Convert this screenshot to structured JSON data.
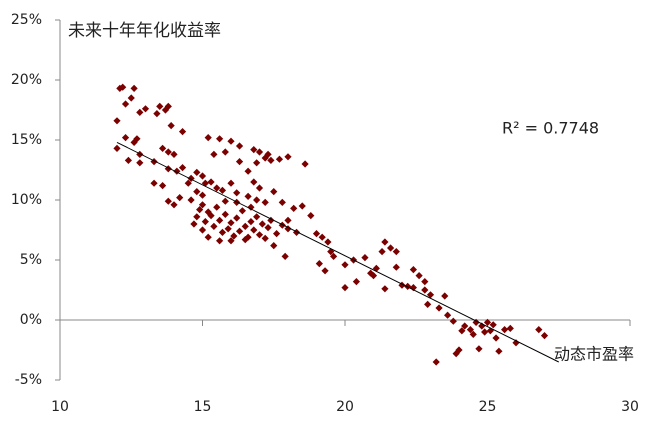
{
  "chart_data": {
    "type": "scatter",
    "y_label": "未来十年年化收益率",
    "x_label": "动态市盈率",
    "annotation": "R² = 0.7748",
    "color": "#7b0000",
    "xlim": [
      10,
      30
    ],
    "xticks": [
      10,
      15,
      20,
      25,
      30
    ],
    "ylim": [
      -5,
      25
    ],
    "yticks": [
      {
        "value": -5,
        "label": "-5%"
      },
      {
        "value": 0,
        "label": "0%"
      },
      {
        "value": 5,
        "label": "5%"
      },
      {
        "value": 10,
        "label": "10%"
      },
      {
        "value": 15,
        "label": "15%"
      },
      {
        "value": 20,
        "label": "20%"
      },
      {
        "value": 25,
        "label": "25%"
      }
    ],
    "x": [
      12.1,
      12.2,
      12.6,
      12.3,
      12.5,
      12.8,
      13.0,
      12.0,
      13.5,
      13.7,
      13.8,
      13.4,
      12.3,
      12.6,
      12.7,
      13.9,
      14.3,
      12.0,
      12.8,
      12.8,
      12.4,
      13.3,
      13.6,
      13.8,
      14.0,
      13.8,
      14.1,
      14.3,
      14.6,
      14.5,
      14.8,
      13.3,
      13.6,
      13.8,
      14.0,
      14.2,
      14.6,
      14.8,
      15.0,
      15.1,
      15.0,
      15.3,
      15.5,
      15.7,
      15.2,
      15.6,
      15.4,
      16.0,
      16.3,
      15.8,
      16.3,
      16.6,
      16.8,
      17.0,
      17.2,
      17.4,
      17.7,
      18.0,
      18.6,
      16.9,
      17.3,
      16.8,
      17.0,
      16.6,
      16.9,
      16.2,
      16.0,
      17.2,
      17.8,
      18.2,
      18.5,
      18.8,
      17.5,
      14.8,
      14.9,
      15.1,
      15.2,
      15.0,
      15.3,
      15.4,
      15.5,
      15.6,
      15.7,
      15.8,
      15.9,
      16.0,
      16.1,
      16.2,
      16.3,
      16.4,
      16.5,
      16.6,
      16.7,
      16.8,
      16.9,
      17.0,
      17.1,
      17.2,
      17.3,
      17.4,
      17.6,
      17.8,
      18.0,
      15.2,
      15.6,
      16.0,
      16.5,
      17.5,
      14.7,
      15.0,
      16.2,
      17.9,
      18.3,
      18.0,
      15.8,
      16.7,
      19.0,
      19.2,
      19.4,
      19.5,
      19.6,
      19.1,
      19.3,
      20.0,
      20.3,
      20.7,
      20.4,
      20.0,
      21.0,
      20.9,
      21.1,
      21.3,
      21.6,
      21.4,
      21.8,
      21.8,
      21.4,
      22.0,
      22.2,
      22.4,
      22.6,
      22.8,
      22.4,
      22.8,
      22.9,
      23.0,
      23.3,
      23.6,
      23.5,
      23.2,
      23.9,
      24.0,
      24.2,
      24.4,
      24.5,
      24.6,
      24.8,
      24.7,
      25.0,
      25.1,
      25.3,
      25.4,
      25.6,
      25.8,
      26.0,
      25.2,
      26.8,
      27.0,
      24.9,
      24.1,
      23.8
    ],
    "y": [
      19.3,
      19.4,
      19.3,
      18,
      18.5,
      17.3,
      17.6,
      16.6,
      17.8,
      17.5,
      17.8,
      17.2,
      15.2,
      14.8,
      15.1,
      16.2,
      15.7,
      14.3,
      13.8,
      13.1,
      13.3,
      13.2,
      14.3,
      14.0,
      13.8,
      12.6,
      12.4,
      12.7,
      11.8,
      11.4,
      12.3,
      11.4,
      11.2,
      9.9,
      9.6,
      10.2,
      10.0,
      10.7,
      10.4,
      11.4,
      12.0,
      11.5,
      11.0,
      10.8,
      15.2,
      15.1,
      13.8,
      14.9,
      14.5,
      14.0,
      13.2,
      12.4,
      14.2,
      14.0,
      13.5,
      13.3,
      13.4,
      13.6,
      13.0,
      13.1,
      13.8,
      11.5,
      11.0,
      10.3,
      10.0,
      10.6,
      11.4,
      9.8,
      9.8,
      9.3,
      9.5,
      8.7,
      10.7,
      8.6,
      9.2,
      8.2,
      9.0,
      7.5,
      8.7,
      7.8,
      9.4,
      8.3,
      7.3,
      8.8,
      7.6,
      8.1,
      7.0,
      8.5,
      7.4,
      9.1,
      7.8,
      6.9,
      8.2,
      7.5,
      8.6,
      7.1,
      8.0,
      6.8,
      7.7,
      8.3,
      7.2,
      7.9,
      7.6,
      6.9,
      6.6,
      6.6,
      6.7,
      6.2,
      8.0,
      9.6,
      9.8,
      5.3,
      7.3,
      8.3,
      9.9,
      9.4,
      7.2,
      6.9,
      6.5,
      5.7,
      5.3,
      4.7,
      4.1,
      4.6,
      5.0,
      5.2,
      3.2,
      2.7,
      3.7,
      3.9,
      4.3,
      5.7,
      6.0,
      6.5,
      5.7,
      4.4,
      2.6,
      2.9,
      2.8,
      4.2,
      3.7,
      3.2,
      2.7,
      2.5,
      1.3,
      2.1,
      1.0,
      0.4,
      2.0,
      -3.5,
      -2.8,
      -2.5,
      -0.5,
      -0.8,
      -1.2,
      -0.2,
      -0.5,
      -2.4,
      -0.2,
      -0.9,
      -1.5,
      -2.6,
      -0.8,
      -0.7,
      -1.9,
      -0.4,
      -0.8,
      -1.3,
      -1.0,
      -0.9,
      -0.1
    ],
    "trendline": {
      "x": [
        12,
        27.5
      ],
      "y": [
        14.8,
        -3.5
      ]
    }
  }
}
